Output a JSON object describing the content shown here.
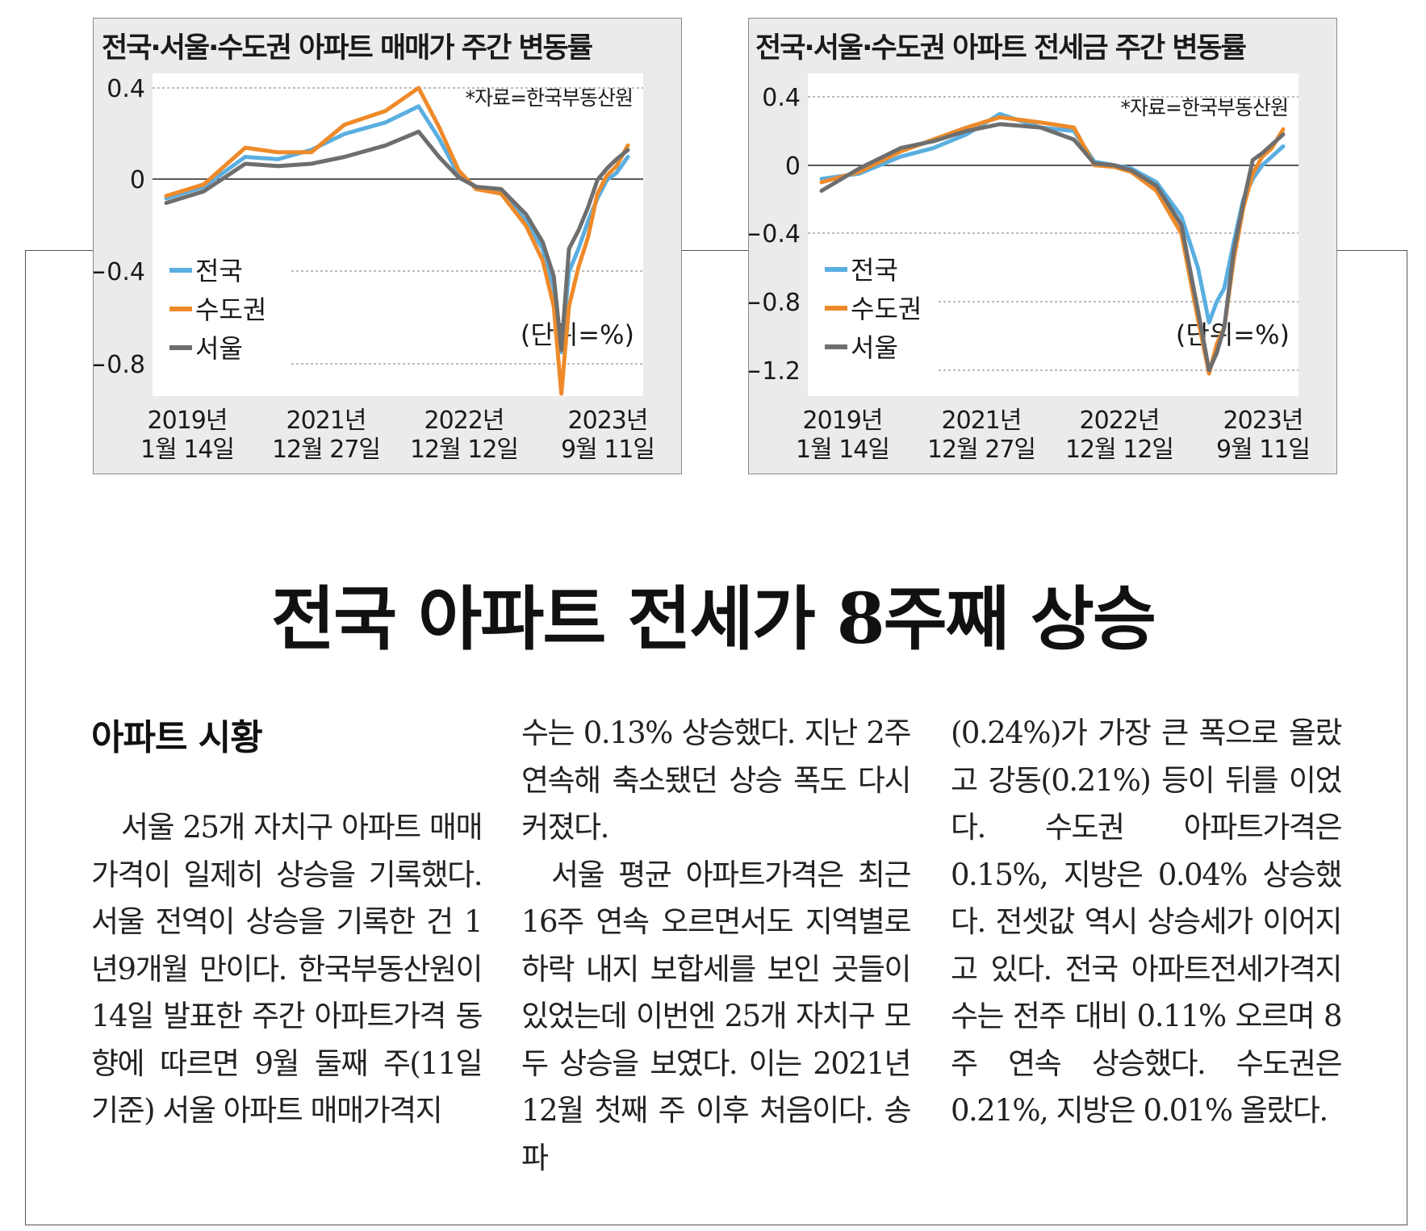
{
  "headline": "전국 아파트 전세가 8주째 상승",
  "charts": [
    {
      "title": "전국·서울·수도권 아파트 매매가 주간 변동률",
      "source": "*자료=한국부동산원",
      "unit": "(단위=%)",
      "yticks": [
        "0.4",
        "0",
        "−0.4",
        "−0.8"
      ],
      "xticks": [
        {
          "year": "2019년",
          "date": "1월 14일"
        },
        {
          "year": "2021년",
          "date": "12월 27일"
        },
        {
          "year": "2022년",
          "date": "12월 12일"
        },
        {
          "year": "2023년",
          "date": "9월 11일"
        }
      ],
      "legend": [
        "전국",
        "수도권",
        "서울"
      ]
    },
    {
      "title": "전국·서울·수도권 아파트 전세금 주간 변동률",
      "source": "*자료=한국부동산원",
      "unit": "(단위=%)",
      "yticks": [
        "0.4",
        "0",
        "−0.4",
        "−0.8",
        "−1.2"
      ],
      "xticks": [
        {
          "year": "2019년",
          "date": "1월 14일"
        },
        {
          "year": "2021년",
          "date": "12월 27일"
        },
        {
          "year": "2022년",
          "date": "12월 12일"
        },
        {
          "year": "2023년",
          "date": "9월 11일"
        }
      ],
      "legend": [
        "전국",
        "수도권",
        "서울"
      ]
    }
  ],
  "chart_data": [
    {
      "type": "line",
      "title": "전국·서울·수도권 아파트 매매가 주간 변동률",
      "xlabel": "",
      "ylabel": "(단위=%)",
      "ylim": [
        -0.92,
        0.45
      ],
      "colors": {
        "전국": "#5aaee0",
        "수도권": "#ee8a2a",
        "서울": "#6e6e6e"
      },
      "x": [
        "2019-01-14",
        "2019-06-01",
        "2019-11-01",
        "2020-03-01",
        "2020-07-01",
        "2020-11-01",
        "2021-04-01",
        "2021-08-01",
        "2021-10-15",
        "2021-12-27",
        "2022-03-01",
        "2022-06-01",
        "2022-09-01",
        "2022-11-01",
        "2022-12-12",
        "2023-01-09",
        "2023-02-06",
        "2023-03-13",
        "2023-04-17",
        "2023-05-22",
        "2023-06-26",
        "2023-07-31",
        "2023-09-11"
      ],
      "series": [
        {
          "name": "전국",
          "values": [
            -0.08,
            -0.03,
            0.1,
            0.09,
            0.13,
            0.2,
            0.25,
            0.32,
            0.18,
            0.02,
            -0.03,
            -0.05,
            -0.18,
            -0.3,
            -0.47,
            -0.75,
            -0.4,
            -0.3,
            -0.18,
            -0.08,
            0.0,
            0.03,
            0.1
          ]
        },
        {
          "name": "수도권",
          "values": [
            -0.07,
            -0.02,
            0.14,
            0.12,
            0.12,
            0.24,
            0.3,
            0.4,
            0.23,
            0.04,
            -0.04,
            -0.06,
            -0.2,
            -0.35,
            -0.55,
            -0.93,
            -0.55,
            -0.38,
            -0.25,
            -0.06,
            0.02,
            0.06,
            0.15
          ]
        },
        {
          "name": "서울",
          "values": [
            -0.1,
            -0.05,
            0.07,
            0.06,
            0.07,
            0.1,
            0.15,
            0.21,
            0.1,
            0.01,
            -0.03,
            -0.04,
            -0.15,
            -0.27,
            -0.42,
            -0.74,
            -0.3,
            -0.22,
            -0.12,
            0.0,
            0.05,
            0.09,
            0.13
          ]
        }
      ]
    },
    {
      "type": "line",
      "title": "전국·서울·수도권 아파트 전세금 주간 변동률",
      "xlabel": "",
      "ylabel": "(단위=%)",
      "ylim": [
        -1.35,
        0.55
      ],
      "colors": {
        "전국": "#5aaee0",
        "수도권": "#ee8a2a",
        "서울": "#6e6e6e"
      },
      "x": [
        "2019-01-14",
        "2019-06-01",
        "2019-11-01",
        "2020-03-01",
        "2020-07-01",
        "2020-11-01",
        "2021-04-01",
        "2021-08-01",
        "2021-10-15",
        "2021-12-27",
        "2022-03-01",
        "2022-06-01",
        "2022-09-01",
        "2022-11-01",
        "2022-12-12",
        "2023-01-09",
        "2023-02-06",
        "2023-03-13",
        "2023-04-17",
        "2023-05-22",
        "2023-06-26",
        "2023-07-31",
        "2023-09-11"
      ],
      "series": [
        {
          "name": "전국",
          "values": [
            -0.08,
            -0.05,
            0.05,
            0.1,
            0.18,
            0.3,
            0.22,
            0.2,
            0.02,
            0.0,
            -0.02,
            -0.1,
            -0.3,
            -0.6,
            -0.92,
            -0.8,
            -0.72,
            -0.45,
            -0.2,
            -0.08,
            0.0,
            0.05,
            0.11
          ]
        },
        {
          "name": "수도권",
          "values": [
            -0.1,
            -0.04,
            0.08,
            0.15,
            0.22,
            0.28,
            0.25,
            0.22,
            0.0,
            -0.01,
            -0.04,
            -0.15,
            -0.4,
            -0.9,
            -1.22,
            -1.05,
            -0.95,
            -0.55,
            -0.25,
            -0.05,
            0.05,
            0.1,
            0.21
          ]
        },
        {
          "name": "서울",
          "values": [
            -0.15,
            -0.02,
            0.1,
            0.14,
            0.2,
            0.24,
            0.22,
            0.15,
            0.01,
            0.0,
            -0.03,
            -0.12,
            -0.35,
            -0.85,
            -1.2,
            -1.1,
            -0.95,
            -0.5,
            -0.22,
            0.03,
            0.07,
            0.12,
            0.18
          ]
        }
      ]
    }
  ],
  "article": {
    "section_title": "아파트 시황",
    "col1": "서울 25개 자치구 아파트 매매 가격이 일제히 상승을 기록했다. 서울 전역이 상승을 기록한 건 1년9개월 만이다. 한국부동산원이 14일 발표한 주간 아파트가격 동향에 따르면 9월 둘째 주(11일 기준) 서울 아파트 매매가격지",
    "col2a": "수는 0.13% 상승했다. 지난 2주 연속해 축소됐던 상승 폭도 다시 커졌다.",
    "col2b": "서울 평균 아파트가격은 최근 16주 연속 오르면서도 지역별로 하락 내지 보합세를 보인 곳들이 있었는데 이번엔 25개 자치구 모두 상승을 보였다. 이는 2021년 12월 첫째 주 이후 처음이다. 송파",
    "col3": "(0.24%)가 가장 큰 폭으로 올랐고 강동(0.21%) 등이 뒤를 이었다. 수도권 아파트가격은 0.15%, 지방은 0.04% 상승했다. 전셋값 역시 상승세가 이어지고 있다. 전국 아파트전세가격지수는 전주 대비 0.11% 오르며 8주 연속 상승했다. 수도권은 0.21%, 지방은 0.01% 올랐다."
  }
}
